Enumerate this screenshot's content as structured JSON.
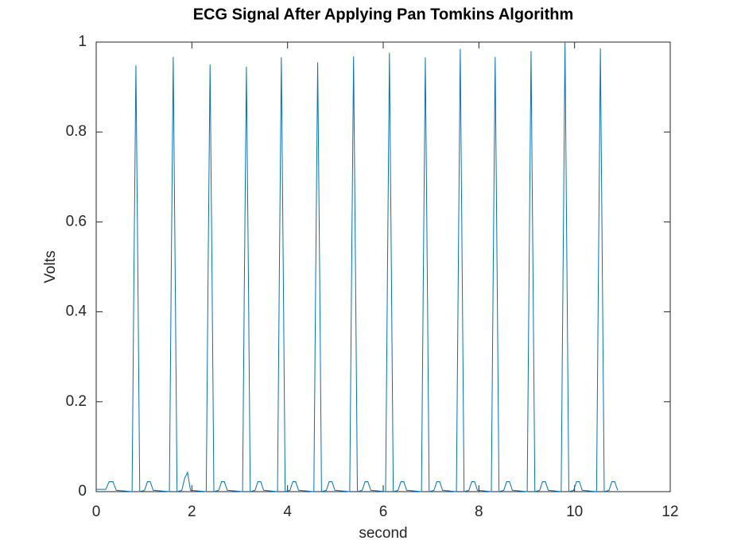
{
  "chart_data": {
    "type": "line",
    "title": "ECG Signal After Applying Pan Tomkins Algorithm",
    "xlabel": "second",
    "ylabel": "Volts",
    "xlim": [
      0,
      12
    ],
    "ylim": [
      0,
      1
    ],
    "xticks": [
      0,
      2,
      4,
      6,
      8,
      10,
      12
    ],
    "yticks": [
      0,
      0.2,
      0.4,
      0.6,
      0.8,
      1
    ],
    "x": [
      0,
      0.2,
      0.27,
      0.35,
      0.42,
      0.75,
      0.79,
      0.83,
      0.87,
      0.91,
      1.01,
      1.07,
      1.13,
      1.19,
      1.53,
      1.57,
      1.61,
      1.65,
      1.69,
      1.79,
      1.85,
      1.91,
      1.97,
      2.3,
      2.34,
      2.38,
      2.42,
      2.46,
      2.56,
      2.62,
      2.68,
      2.74,
      3.06,
      3.1,
      3.14,
      3.18,
      3.22,
      3.32,
      3.38,
      3.44,
      3.5,
      3.79,
      3.83,
      3.87,
      3.91,
      3.95,
      4.05,
      4.11,
      4.17,
      4.23,
      4.55,
      4.59,
      4.63,
      4.67,
      4.71,
      4.81,
      4.87,
      4.93,
      4.99,
      5.3,
      5.34,
      5.38,
      5.42,
      5.46,
      5.56,
      5.62,
      5.68,
      5.74,
      6.05,
      6.09,
      6.13,
      6.17,
      6.21,
      6.31,
      6.37,
      6.43,
      6.49,
      6.8,
      6.84,
      6.88,
      6.92,
      6.96,
      7.06,
      7.12,
      7.18,
      7.24,
      7.53,
      7.57,
      7.61,
      7.65,
      7.69,
      7.79,
      7.85,
      7.91,
      7.97,
      8.26,
      8.3,
      8.34,
      8.38,
      8.42,
      8.52,
      8.58,
      8.64,
      8.7,
      9.01,
      9.05,
      9.09,
      9.13,
      9.17,
      9.27,
      9.33,
      9.39,
      9.45,
      9.72,
      9.76,
      9.8,
      9.84,
      9.88,
      9.98,
      10.04,
      10.1,
      10.16,
      10.46,
      10.5,
      10.54,
      10.58,
      10.62,
      10.72,
      10.78,
      10.84,
      10.9
    ],
    "series": [
      {
        "name": "ECG",
        "color": "#0072bd",
        "values": [
          0.005,
          0.005,
          0.022,
          0.022,
          0.003,
          0,
          0.5,
          0.948,
          0.5,
          0,
          0.003,
          0.022,
          0.022,
          0.003,
          0,
          0.5,
          0.967,
          0.5,
          0,
          0.003,
          0.03,
          0.043,
          0.003,
          0,
          0.5,
          0.95,
          0.5,
          0,
          0.003,
          0.022,
          0.022,
          0.003,
          0,
          0.5,
          0.945,
          0.5,
          0,
          0.003,
          0.022,
          0.022,
          0.003,
          0,
          0.5,
          0.966,
          0.5,
          0,
          0.003,
          0.022,
          0.022,
          0.003,
          0,
          0.5,
          0.955,
          0.5,
          0,
          0.003,
          0.022,
          0.022,
          0.003,
          0,
          0.5,
          0.968,
          0.5,
          0,
          0.003,
          0.022,
          0.022,
          0.003,
          0,
          0.5,
          0.976,
          0.5,
          0,
          0.003,
          0.022,
          0.022,
          0.003,
          0,
          0.5,
          0.966,
          0.5,
          0,
          0.003,
          0.022,
          0.022,
          0.003,
          0,
          0.5,
          0.985,
          0.5,
          0,
          0.003,
          0.022,
          0.022,
          0.003,
          0,
          0.5,
          0.967,
          0.5,
          0,
          0.003,
          0.022,
          0.022,
          0.003,
          0,
          0.5,
          0.98,
          0.5,
          0,
          0.003,
          0.022,
          0.022,
          0.003,
          0,
          0.5,
          1.0,
          0.5,
          0,
          0.003,
          0.022,
          0.022,
          0.003,
          0,
          0.5,
          0.986,
          0.5,
          0,
          0.003,
          0.022,
          0.022,
          0.003
        ]
      }
    ]
  }
}
